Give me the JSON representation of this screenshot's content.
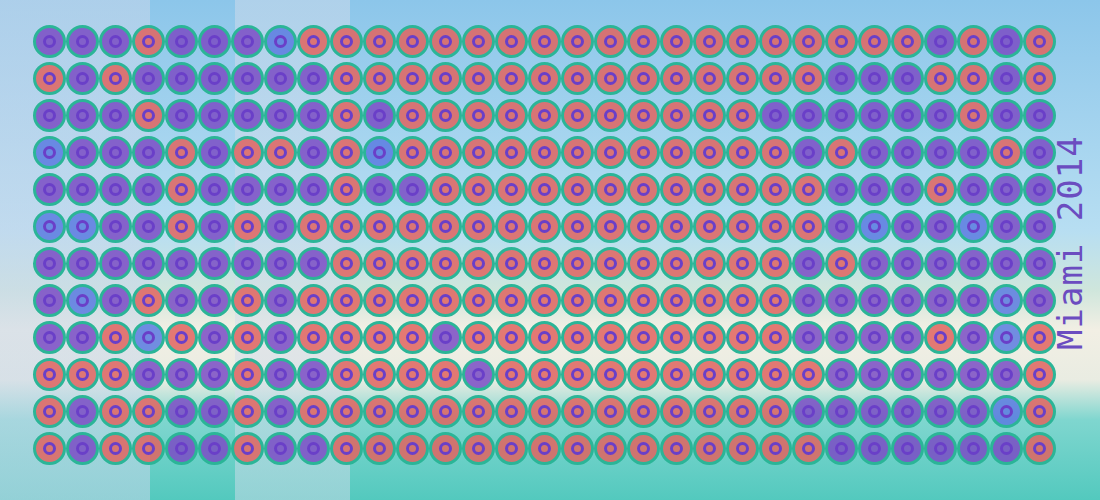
{
  "chart_data": {
    "type": "dot grid",
    "title": "Miami 2014",
    "tick_labels": false,
    "colors": [
      "#5b7be0",
      "#7a4cc4",
      "#e0645f"
    ],
    "cells": [
      [
        1,
        1,
        1,
        2,
        1,
        1,
        1,
        0,
        2,
        2,
        2,
        2,
        2,
        2,
        2,
        2,
        2,
        2,
        2,
        2,
        2,
        2,
        2,
        2,
        2,
        2,
        2,
        1,
        2,
        1,
        2
      ],
      [
        2,
        1,
        2,
        1,
        1,
        1,
        1,
        1,
        1,
        2,
        2,
        2,
        2,
        2,
        2,
        2,
        2,
        2,
        2,
        2,
        2,
        2,
        2,
        2,
        1,
        1,
        1,
        2,
        2,
        1,
        2
      ],
      [
        1,
        1,
        1,
        2,
        1,
        1,
        1,
        1,
        1,
        2,
        1,
        2,
        2,
        2,
        2,
        2,
        2,
        2,
        2,
        2,
        2,
        2,
        1,
        1,
        1,
        1,
        1,
        1,
        2,
        1,
        1
      ],
      [
        0,
        1,
        1,
        1,
        2,
        1,
        2,
        2,
        1,
        2,
        0,
        2,
        2,
        2,
        2,
        2,
        2,
        2,
        2,
        2,
        2,
        2,
        2,
        1,
        2,
        1,
        1,
        1,
        1,
        2,
        1
      ],
      [
        1,
        1,
        1,
        1,
        2,
        1,
        1,
        1,
        1,
        2,
        1,
        1,
        2,
        2,
        2,
        2,
        2,
        2,
        2,
        2,
        2,
        2,
        2,
        2,
        1,
        1,
        1,
        2,
        1,
        1,
        1
      ],
      [
        0,
        0,
        1,
        1,
        2,
        1,
        2,
        1,
        2,
        2,
        2,
        2,
        2,
        2,
        2,
        2,
        2,
        2,
        2,
        2,
        2,
        2,
        2,
        2,
        1,
        0,
        1,
        1,
        0,
        1,
        1
      ],
      [
        1,
        1,
        1,
        1,
        1,
        1,
        1,
        1,
        1,
        2,
        2,
        2,
        2,
        2,
        2,
        2,
        2,
        2,
        2,
        2,
        2,
        2,
        2,
        1,
        2,
        1,
        1,
        1,
        1,
        1,
        1
      ],
      [
        1,
        0,
        1,
        2,
        1,
        1,
        2,
        1,
        2,
        2,
        2,
        2,
        2,
        2,
        2,
        2,
        2,
        2,
        2,
        2,
        2,
        2,
        2,
        1,
        1,
        1,
        1,
        1,
        1,
        0,
        1
      ],
      [
        1,
        1,
        2,
        0,
        2,
        1,
        2,
        1,
        2,
        2,
        2,
        2,
        1,
        2,
        2,
        2,
        2,
        2,
        2,
        2,
        2,
        2,
        2,
        1,
        1,
        1,
        1,
        2,
        1,
        0,
        2
      ],
      [
        2,
        2,
        2,
        1,
        1,
        1,
        2,
        1,
        1,
        2,
        2,
        2,
        2,
        1,
        2,
        2,
        2,
        2,
        2,
        2,
        2,
        2,
        2,
        2,
        1,
        1,
        1,
        1,
        1,
        1,
        2
      ],
      [
        2,
        1,
        2,
        2,
        1,
        1,
        2,
        1,
        2,
        2,
        2,
        2,
        2,
        2,
        2,
        2,
        2,
        2,
        2,
        2,
        2,
        2,
        2,
        1,
        1,
        1,
        1,
        1,
        1,
        0,
        2
      ],
      [
        2,
        1,
        2,
        2,
        1,
        1,
        2,
        1,
        1,
        2,
        2,
        2,
        2,
        2,
        2,
        2,
        2,
        2,
        2,
        2,
        2,
        2,
        2,
        2,
        1,
        1,
        1,
        1,
        1,
        1,
        2
      ]
    ]
  }
}
